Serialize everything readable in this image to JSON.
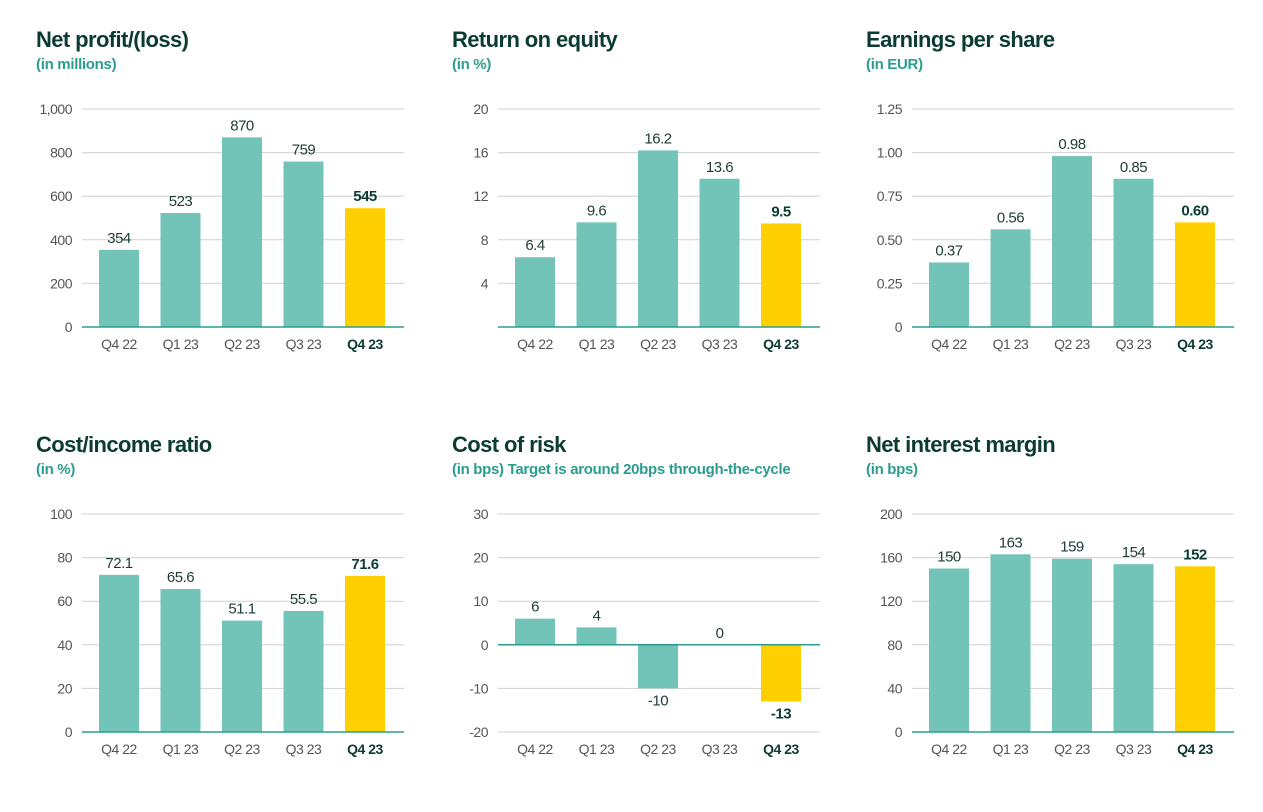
{
  "colors": {
    "bar": "#72c4b9",
    "highlight": "#ffd000",
    "grid": "#d0d0d0",
    "axis": "#2a9d8f",
    "text": "#555555",
    "label": "#1f3b36",
    "highlight_label": "#0b3b33"
  },
  "chart_data": [
    {
      "type": "bar",
      "title": "Net profit/(loss)",
      "subtitle": "(in millions)",
      "categories": [
        "Q4 22",
        "Q1 23",
        "Q2 23",
        "Q3 23",
        "Q4 23"
      ],
      "values": [
        354,
        523,
        870,
        759,
        545
      ],
      "value_labels": [
        "354",
        "523",
        "870",
        "759",
        "545"
      ],
      "highlight_index": 4,
      "yticks": [
        0,
        200,
        400,
        600,
        800,
        1000
      ],
      "ytick_labels": [
        "0",
        "200",
        "400",
        "600",
        "800",
        "1,000"
      ],
      "ylim": [
        0,
        1000
      ]
    },
    {
      "type": "bar",
      "title": "Return on equity",
      "subtitle": "(in %)",
      "categories": [
        "Q4 22",
        "Q1 23",
        "Q2 23",
        "Q3 23",
        "Q4 23"
      ],
      "values": [
        6.4,
        9.6,
        16.2,
        13.6,
        9.5
      ],
      "value_labels": [
        "6.4",
        "9.6",
        "16.2",
        "13.6",
        "9.5"
      ],
      "highlight_index": 4,
      "yticks": [
        4,
        8,
        12,
        16,
        20
      ],
      "ytick_labels": [
        "4",
        "8",
        "12",
        "16",
        "20"
      ],
      "ylim": [
        0,
        20
      ]
    },
    {
      "type": "bar",
      "title": "Earnings per share",
      "subtitle": "(in EUR)",
      "categories": [
        "Q4 22",
        "Q1 23",
        "Q2 23",
        "Q3 23",
        "Q4 23"
      ],
      "values": [
        0.37,
        0.56,
        0.98,
        0.85,
        0.6
      ],
      "value_labels": [
        "0.37",
        "0.56",
        "0.98",
        "0.85",
        "0.60"
      ],
      "highlight_index": 4,
      "yticks": [
        0,
        0.25,
        0.5,
        0.75,
        1.0,
        1.25
      ],
      "ytick_labels": [
        "0",
        "0.25",
        "0.50",
        "0.75",
        "1.00",
        "1.25"
      ],
      "ylim": [
        0,
        1.25
      ]
    },
    {
      "type": "bar",
      "title": "Cost/income ratio",
      "subtitle": "(in %)",
      "categories": [
        "Q4 22",
        "Q1 23",
        "Q2 23",
        "Q3 23",
        "Q4 23"
      ],
      "values": [
        72.1,
        65.6,
        51.1,
        55.5,
        71.6
      ],
      "value_labels": [
        "72.1",
        "65.6",
        "51.1",
        "55.5",
        "71.6"
      ],
      "highlight_index": 4,
      "yticks": [
        0,
        20,
        40,
        60,
        80,
        100
      ],
      "ytick_labels": [
        "0",
        "20",
        "40",
        "60",
        "80",
        "100"
      ],
      "ylim": [
        0,
        100
      ]
    },
    {
      "type": "bar",
      "title": "Cost of risk",
      "subtitle": "(in bps) Target is around 20bps through-the-cycle",
      "categories": [
        "Q4 22",
        "Q1 23",
        "Q2 23",
        "Q3 23",
        "Q4 23"
      ],
      "values": [
        6,
        4,
        -10,
        0,
        -13
      ],
      "value_labels": [
        "6",
        "4",
        "-10",
        "0",
        "-13"
      ],
      "highlight_index": 4,
      "yticks": [
        -20,
        -10,
        0,
        10,
        20,
        30
      ],
      "ytick_labels": [
        "-20",
        "-10",
        "0",
        "10",
        "20",
        "30"
      ],
      "ylim": [
        -20,
        30
      ]
    },
    {
      "type": "bar",
      "title": "Net interest margin",
      "subtitle": "(in bps)",
      "categories": [
        "Q4 22",
        "Q1 23",
        "Q2 23",
        "Q3 23",
        "Q4 23"
      ],
      "values": [
        150,
        163,
        159,
        154,
        152
      ],
      "value_labels": [
        "150",
        "163",
        "159",
        "154",
        "152"
      ],
      "highlight_index": 4,
      "yticks": [
        0,
        40,
        80,
        120,
        160,
        200
      ],
      "ytick_labels": [
        "0",
        "40",
        "80",
        "120",
        "160",
        "200"
      ],
      "ylim": [
        0,
        200
      ]
    }
  ]
}
